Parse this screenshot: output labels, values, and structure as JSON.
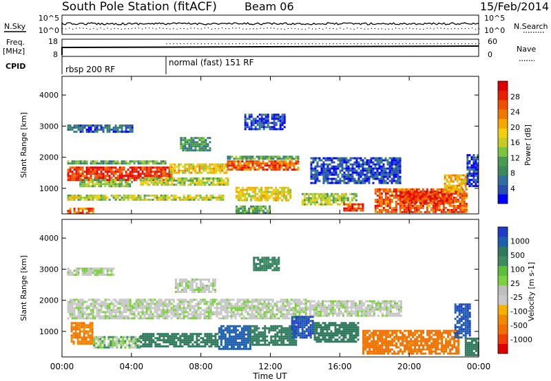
{
  "header": {
    "station": "South Pole Station (fitACF)",
    "beam": "Beam 06",
    "date": "15/Feb/2014"
  },
  "status_panels": {
    "nsky_label": "N.Sky",
    "nsky_ticks": [
      "10^5",
      "10^0"
    ],
    "nsearch_label": "N.Search",
    "nsearch_ticks": [
      "10^5",
      "10^0"
    ],
    "freq_label_1": "Freq.",
    "freq_label_2": "[MHz]",
    "freq_ticks": [
      "18",
      "8"
    ],
    "nave_label": "Nave",
    "nave_ticks": [
      "60",
      "0"
    ],
    "cpid_label": "CPID",
    "cpid_modes": [
      {
        "label": "rbsp 200 RF",
        "start_hour": 0
      },
      {
        "label": "normal (fast) 151 RF",
        "start_hour": 6
      }
    ]
  },
  "x_axis": {
    "label": "Time UT",
    "ticks": [
      "00:00",
      "04:00",
      "08:00",
      "12:00",
      "16:00",
      "20:00",
      "00:00"
    ],
    "range_hours": [
      0,
      24
    ]
  },
  "chart_data": [
    {
      "type": "heatmap",
      "title": "",
      "xlabel": "Time UT",
      "ylabel": "Slant Range [km]",
      "xlim_hours": [
        0,
        24
      ],
      "ylim_km": [
        180,
        4600
      ],
      "y_ticks": [
        "1000",
        "2000",
        "3000",
        "4000"
      ],
      "colorbar": {
        "label": "Power [dB]",
        "ticks": [
          "4",
          "8",
          "12",
          "16",
          "20",
          "24",
          "28"
        ],
        "colors": [
          "#0000ff",
          "#2a4fb0",
          "#2f6f9f",
          "#3c8a5c",
          "#4a9a50",
          "#7cc442",
          "#c8cc20",
          "#f0d010",
          "#f5a800",
          "#f07800",
          "#f05000",
          "#e82000",
          "#e00000"
        ]
      },
      "regions": [
        {
          "t": [
            0.3,
            6.3
          ],
          "r": [
            1300,
            1700
          ],
          "level": 0.88
        },
        {
          "t": [
            0.3,
            6.0
          ],
          "r": [
            1780,
            1900
          ],
          "level": 0.35
        },
        {
          "t": [
            0.3,
            9.3
          ],
          "r": [
            650,
            800
          ],
          "level": 0.5
        },
        {
          "t": [
            0.3,
            1.8
          ],
          "r": [
            200,
            380
          ],
          "level": 0.78
        },
        {
          "t": [
            1.0,
            4.0
          ],
          "r": [
            1050,
            1300
          ],
          "level": 0.4
        },
        {
          "t": [
            4.5,
            9.5
          ],
          "r": [
            1100,
            1350
          ],
          "level": 0.48
        },
        {
          "t": [
            6.2,
            9.5
          ],
          "r": [
            1500,
            1800
          ],
          "level": 0.58
        },
        {
          "t": [
            6.8,
            8.5
          ],
          "r": [
            2200,
            2650
          ],
          "level": 0.3
        },
        {
          "t": [
            9.5,
            13.6
          ],
          "r": [
            1600,
            1900
          ],
          "level": 0.8
        },
        {
          "t": [
            9.5,
            13.6
          ],
          "r": [
            1950,
            2050
          ],
          "level": 0.35
        },
        {
          "t": [
            10.0,
            13.2
          ],
          "r": [
            650,
            1050
          ],
          "level": 0.55
        },
        {
          "t": [
            10.0,
            12.0
          ],
          "r": [
            200,
            450
          ],
          "level": 0.35
        },
        {
          "t": [
            13.8,
            17.0
          ],
          "r": [
            500,
            850
          ],
          "level": 0.45
        },
        {
          "t": [
            14.3,
            19.5
          ],
          "r": [
            1200,
            2000
          ],
          "level": 0.12
        },
        {
          "t": [
            16.2,
            17.3
          ],
          "r": [
            320,
            520
          ],
          "level": 0.85
        },
        {
          "t": [
            18.0,
            23.3
          ],
          "r": [
            250,
            1000
          ],
          "level": 0.8
        },
        {
          "t": [
            19.5,
            22.5
          ],
          "r": [
            550,
            900
          ],
          "level": 0.9
        },
        {
          "t": [
            22.0,
            23.3
          ],
          "r": [
            900,
            1450
          ],
          "level": 0.62
        },
        {
          "t": [
            23.3,
            24.0
          ],
          "r": [
            1100,
            2100
          ],
          "level": 0.1
        },
        {
          "t": [
            0.3,
            4.0
          ],
          "r": [
            2800,
            3050
          ],
          "level": 0.15
        },
        {
          "t": [
            10.5,
            12.8
          ],
          "r": [
            2900,
            3400
          ],
          "level": 0.12
        }
      ]
    },
    {
      "type": "heatmap",
      "title": "",
      "xlabel": "Time UT",
      "ylabel": "Slant Range [km]",
      "xlim_hours": [
        0,
        24
      ],
      "ylim_km": [
        180,
        4600
      ],
      "y_ticks": [
        "1000",
        "2000",
        "3000",
        "4000"
      ],
      "colorbar": {
        "label": "Velocity [m s-1]",
        "ticks": [
          "1000",
          "500",
          "100",
          "25",
          "-25",
          "-100",
          "-500",
          "-1000"
        ],
        "colors": [
          "#1e3cc8",
          "#1d5fae",
          "#2f7a5c",
          "#3c8c60",
          "#5cbf3c",
          "#7cd040",
          "#bebebe",
          "#c8c8c8",
          "#f5b000",
          "#f08a00",
          "#f07000",
          "#f04000",
          "#e00000"
        ]
      },
      "regions": [
        {
          "t": [
            0.3,
            14.0
          ],
          "r": [
            1400,
            2050
          ],
          "vel": 25
        },
        {
          "t": [
            14.0,
            19.5
          ],
          "r": [
            1500,
            2000
          ],
          "vel": 25
        },
        {
          "t": [
            0.5,
            1.8
          ],
          "r": [
            600,
            1300
          ],
          "vel": -300
        },
        {
          "t": [
            1.8,
            4.5
          ],
          "r": [
            500,
            850
          ],
          "vel": 50
        },
        {
          "t": [
            4.5,
            9.0
          ],
          "r": [
            550,
            950
          ],
          "vel": 150
        },
        {
          "t": [
            9.0,
            10.8
          ],
          "r": [
            450,
            1200
          ],
          "vel": 600
        },
        {
          "t": [
            10.8,
            13.5
          ],
          "r": [
            600,
            1200
          ],
          "vel": 250
        },
        {
          "t": [
            13.2,
            14.4
          ],
          "r": [
            800,
            1500
          ],
          "vel": 800
        },
        {
          "t": [
            14.5,
            17.0
          ],
          "r": [
            700,
            1300
          ],
          "vel": 150
        },
        {
          "t": [
            17.3,
            22.8
          ],
          "r": [
            300,
            1050
          ],
          "vel": -400
        },
        {
          "t": [
            22.6,
            23.5
          ],
          "r": [
            800,
            1900
          ],
          "vel": 700
        },
        {
          "t": [
            23.2,
            24.0
          ],
          "r": [
            250,
            800
          ],
          "vel": 150
        },
        {
          "t": [
            6.5,
            8.8
          ],
          "r": [
            2300,
            2700
          ],
          "vel": 25
        },
        {
          "t": [
            0.3,
            3.0
          ],
          "r": [
            2800,
            3050
          ],
          "vel": 25
        },
        {
          "t": [
            11.0,
            12.5
          ],
          "r": [
            2950,
            3400
          ],
          "vel": 100
        }
      ]
    }
  ]
}
